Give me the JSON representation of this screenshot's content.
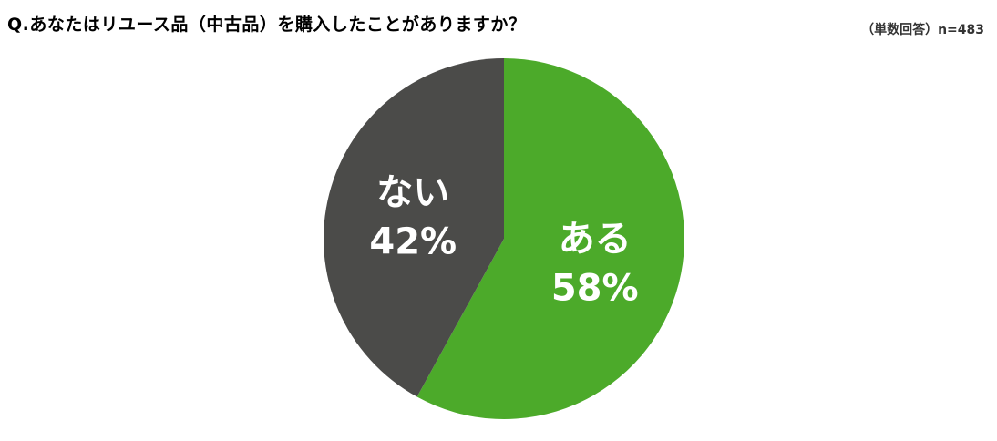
{
  "header": {
    "question": "Q.あなたはリユース品（中古品）を購入したことがありますか？",
    "sample_note": "（単数回答）n=483"
  },
  "chart_data": {
    "type": "pie",
    "title": "Q.あなたはリユース品（中古品）を購入したことがありますか？",
    "unit": "%",
    "slices": [
      {
        "label": "ある",
        "value": 58,
        "display": "58%",
        "color": "#4caa2a"
      },
      {
        "label": "ない",
        "value": 42,
        "display": "42%",
        "color": "#4b4b49"
      }
    ],
    "start_angle": "12 o'clock",
    "direction": "clockwise",
    "legend": "none",
    "labels_inside": true
  }
}
